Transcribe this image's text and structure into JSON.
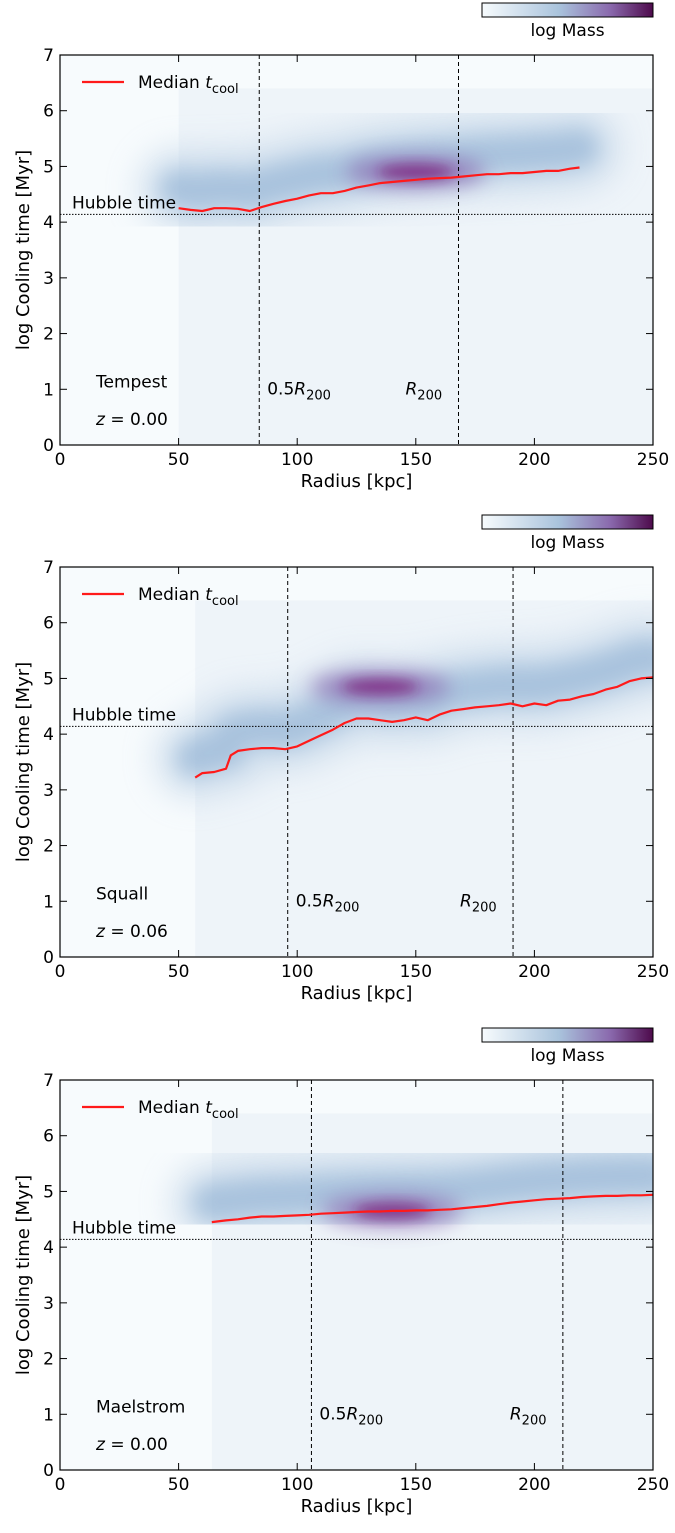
{
  "colorbar": {
    "label": "log Mass",
    "colors": [
      "#f7fbfd",
      "#a9c3dc",
      "#7b6aac",
      "#4d0a4b"
    ]
  },
  "common": {
    "xlabel": "Radius [kpc]",
    "ylabel": "log Cooling time [Myr]",
    "legend_label": "Median t",
    "legend_sub": "cool",
    "hubble_label": "Hubble time",
    "r200_half_label_prefix": "0.5R",
    "r200_label_prefix": "R",
    "r200_sub": "200",
    "z_prefix": "z = ",
    "x_ticks": [
      "0",
      "50",
      "100",
      "150",
      "200",
      "250"
    ],
    "y_ticks": [
      "0",
      "1",
      "2",
      "3",
      "4",
      "5",
      "6",
      "7"
    ],
    "median_color": "#ff1a1a"
  },
  "chart_data": [
    {
      "type": "heatmap",
      "name": "Tempest",
      "redshift": "0.00",
      "xlim": [
        0,
        250
      ],
      "ylim": [
        0,
        7
      ],
      "xlabel": "Radius [kpc]",
      "ylabel": "log Cooling time [Myr]",
      "hubble_time": 4.14,
      "r200_half": 84,
      "r200": 168,
      "median_tcool": {
        "x": [
          50,
          55,
          60,
          65,
          70,
          75,
          80,
          85,
          90,
          95,
          100,
          105,
          110,
          115,
          120,
          125,
          130,
          135,
          140,
          145,
          150,
          155,
          160,
          165,
          170,
          175,
          180,
          185,
          190,
          195,
          200,
          205,
          210,
          215,
          219
        ],
        "y": [
          4.25,
          4.22,
          4.2,
          4.25,
          4.25,
          4.24,
          4.2,
          4.27,
          4.33,
          4.38,
          4.42,
          4.48,
          4.52,
          4.52,
          4.56,
          4.62,
          4.66,
          4.7,
          4.72,
          4.74,
          4.76,
          4.78,
          4.79,
          4.8,
          4.82,
          4.84,
          4.86,
          4.86,
          4.88,
          4.88,
          4.9,
          4.92,
          4.92,
          4.96,
          4.98
        ]
      },
      "density_peak": {
        "x": 150,
        "y": 4.9
      }
    },
    {
      "type": "heatmap",
      "name": "Squall",
      "redshift": "0.06",
      "xlim": [
        0,
        250
      ],
      "ylim": [
        0,
        7
      ],
      "xlabel": "Radius [kpc]",
      "ylabel": "log Cooling time [Myr]",
      "hubble_time": 4.14,
      "r200_half": 96,
      "r200": 191,
      "median_tcool": {
        "x": [
          57,
          60,
          65,
          70,
          72,
          75,
          80,
          85,
          90,
          95,
          100,
          105,
          110,
          115,
          120,
          125,
          130,
          135,
          140,
          145,
          150,
          155,
          160,
          165,
          170,
          175,
          180,
          185,
          190,
          195,
          200,
          205,
          210,
          215,
          220,
          225,
          230,
          235,
          240,
          245,
          250
        ],
        "y": [
          3.22,
          3.3,
          3.32,
          3.38,
          3.62,
          3.7,
          3.73,
          3.75,
          3.75,
          3.73,
          3.78,
          3.88,
          3.98,
          4.08,
          4.2,
          4.28,
          4.28,
          4.25,
          4.22,
          4.25,
          4.3,
          4.25,
          4.35,
          4.42,
          4.45,
          4.48,
          4.5,
          4.52,
          4.55,
          4.5,
          4.55,
          4.52,
          4.6,
          4.62,
          4.68,
          4.72,
          4.8,
          4.85,
          4.95,
          5.0,
          5.02
        ]
      },
      "density_peak": {
        "x": 135,
        "y": 4.85
      }
    },
    {
      "type": "heatmap",
      "name": "Maelstrom",
      "redshift": "0.00",
      "xlim": [
        0,
        250
      ],
      "ylim": [
        0,
        7
      ],
      "xlabel": "Radius [kpc]",
      "ylabel": "log Cooling time [Myr]",
      "hubble_time": 4.14,
      "r200_half": 106,
      "r200": 212,
      "median_tcool": {
        "x": [
          64,
          70,
          75,
          80,
          85,
          90,
          95,
          100,
          105,
          110,
          115,
          120,
          125,
          130,
          135,
          140,
          145,
          150,
          155,
          160,
          165,
          170,
          175,
          180,
          185,
          190,
          195,
          200,
          205,
          210,
          215,
          220,
          225,
          230,
          235,
          240,
          245,
          250
        ],
        "y": [
          4.45,
          4.48,
          4.5,
          4.53,
          4.55,
          4.55,
          4.56,
          4.57,
          4.58,
          4.6,
          4.61,
          4.62,
          4.63,
          4.64,
          4.64,
          4.65,
          4.65,
          4.66,
          4.66,
          4.67,
          4.68,
          4.7,
          4.72,
          4.74,
          4.77,
          4.8,
          4.82,
          4.84,
          4.86,
          4.87,
          4.88,
          4.9,
          4.91,
          4.92,
          4.92,
          4.93,
          4.93,
          4.94
        ]
      },
      "density_peak": {
        "x": 140,
        "y": 4.65
      }
    }
  ]
}
